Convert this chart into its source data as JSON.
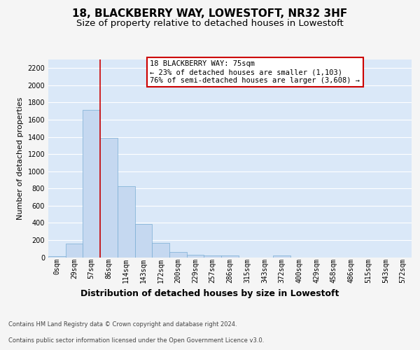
{
  "title1": "18, BLACKBERRY WAY, LOWESTOFT, NR32 3HF",
  "title2": "Size of property relative to detached houses in Lowestoft",
  "xlabel": "Distribution of detached houses by size in Lowestoft",
  "ylabel": "Number of detached properties",
  "footer1": "Contains HM Land Registry data © Crown copyright and database right 2024.",
  "footer2": "Contains public sector information licensed under the Open Government Licence v3.0.",
  "bin_labels": [
    "0sqm",
    "29sqm",
    "57sqm",
    "86sqm",
    "114sqm",
    "143sqm",
    "172sqm",
    "200sqm",
    "229sqm",
    "257sqm",
    "286sqm",
    "315sqm",
    "343sqm",
    "372sqm",
    "400sqm",
    "429sqm",
    "458sqm",
    "486sqm",
    "515sqm",
    "543sqm",
    "572sqm"
  ],
  "bar_values": [
    15,
    160,
    1710,
    1390,
    830,
    390,
    165,
    60,
    30,
    20,
    20,
    0,
    0,
    20,
    0,
    0,
    0,
    0,
    0,
    0,
    0
  ],
  "bar_color": "#c5d8f0",
  "bar_edge_color": "#7aadd4",
  "vline_color": "#cc0000",
  "vline_x": 3.0,
  "annotation_text": "18 BLACKBERRY WAY: 75sqm\n← 23% of detached houses are smaller (1,103)\n76% of semi-detached houses are larger (3,608) →",
  "annotation_box_facecolor": "#ffffff",
  "annotation_box_edgecolor": "#cc0000",
  "ylim": [
    0,
    2300
  ],
  "yticks": [
    0,
    200,
    400,
    600,
    800,
    1000,
    1200,
    1400,
    1600,
    1800,
    2000,
    2200
  ],
  "plot_bg_color": "#dae8f8",
  "grid_color": "#ffffff",
  "fig_bg_color": "#f5f5f5",
  "title_fontsize": 11,
  "subtitle_fontsize": 9.5,
  "ylabel_fontsize": 8,
  "xlabel_fontsize": 9,
  "tick_fontsize": 7,
  "annotation_fontsize": 7.5,
  "footer_fontsize": 6
}
